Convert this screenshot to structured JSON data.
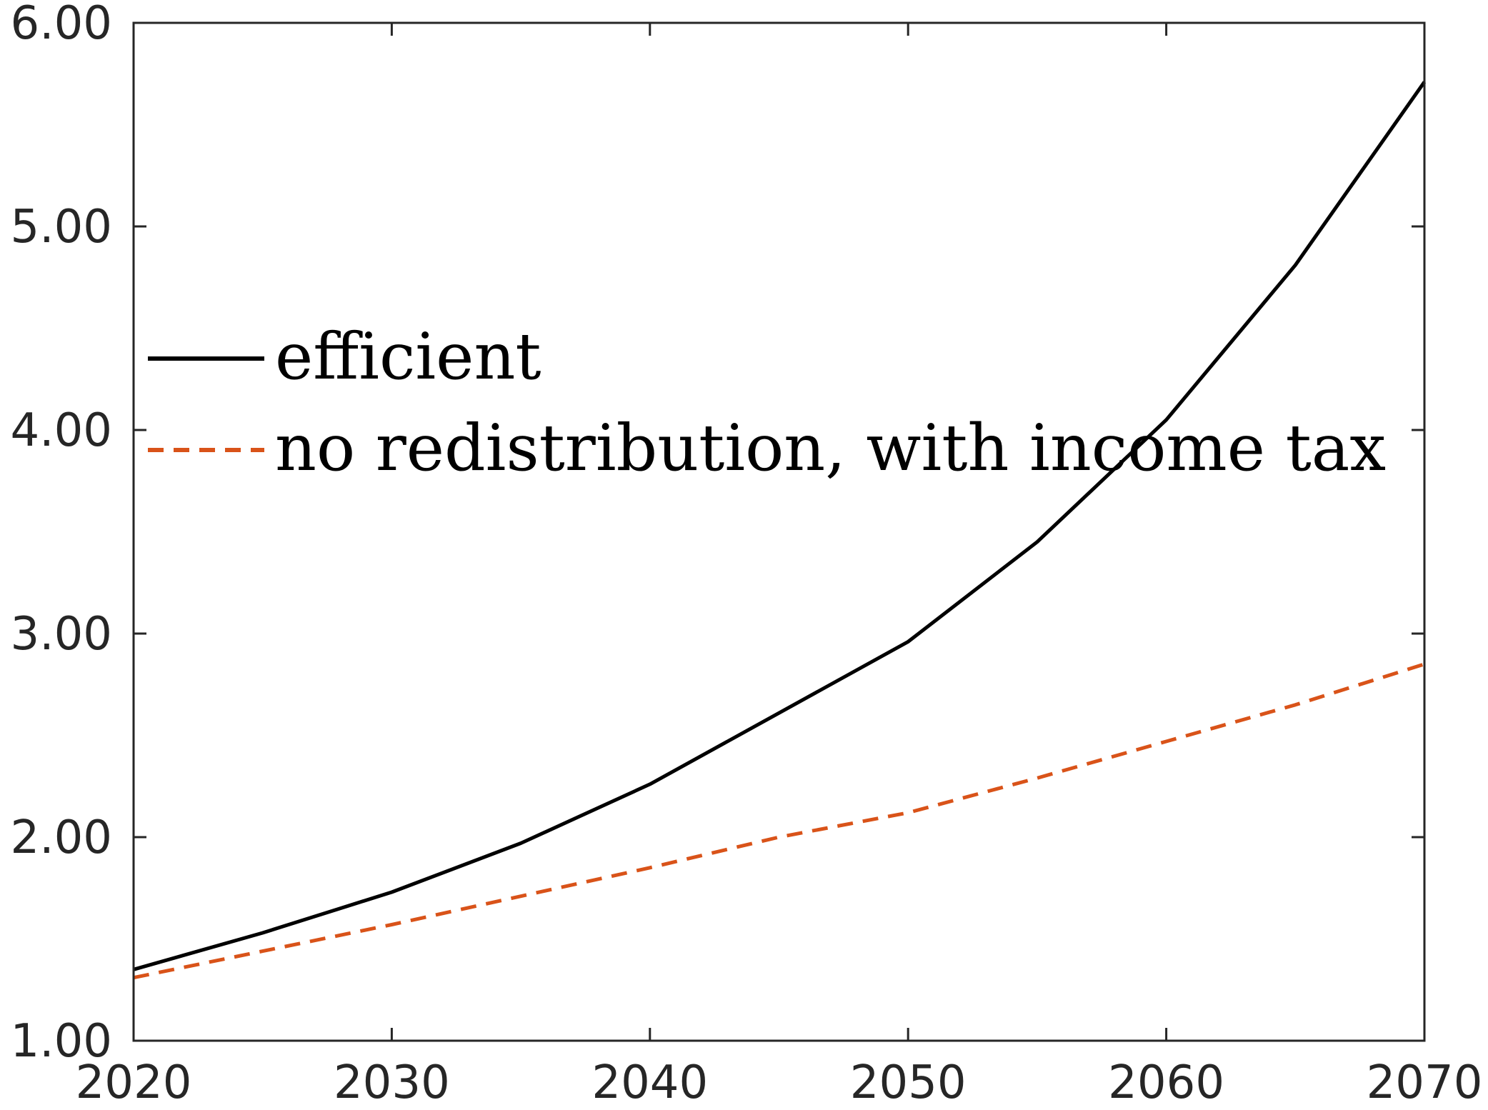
{
  "chart_data": {
    "type": "line",
    "x": [
      2020,
      2025,
      2030,
      2035,
      2040,
      2045,
      2050,
      2055,
      2060,
      2065,
      2070
    ],
    "series": [
      {
        "name": "efficient",
        "color": "#000000",
        "dash": "solid",
        "values": [
          1.35,
          1.53,
          1.73,
          1.97,
          2.26,
          2.61,
          2.96,
          3.45,
          4.05,
          4.81,
          5.71
        ]
      },
      {
        "name": "no redistribution, with income tax",
        "color": "#d95319",
        "dash": "dashed",
        "values": [
          1.31,
          1.44,
          1.57,
          1.71,
          1.85,
          2.0,
          2.12,
          2.29,
          2.47,
          2.65,
          2.85
        ]
      }
    ],
    "xlim": [
      2020,
      2070
    ],
    "ylim": [
      1.0,
      6.0
    ],
    "xticks": [
      "2020",
      "2030",
      "2040",
      "2050",
      "2060",
      "2070"
    ],
    "yticks": [
      "1.00",
      "2.00",
      "3.00",
      "4.00",
      "5.00",
      "6.00"
    ],
    "grid": false,
    "legend_position": "upper-left"
  }
}
